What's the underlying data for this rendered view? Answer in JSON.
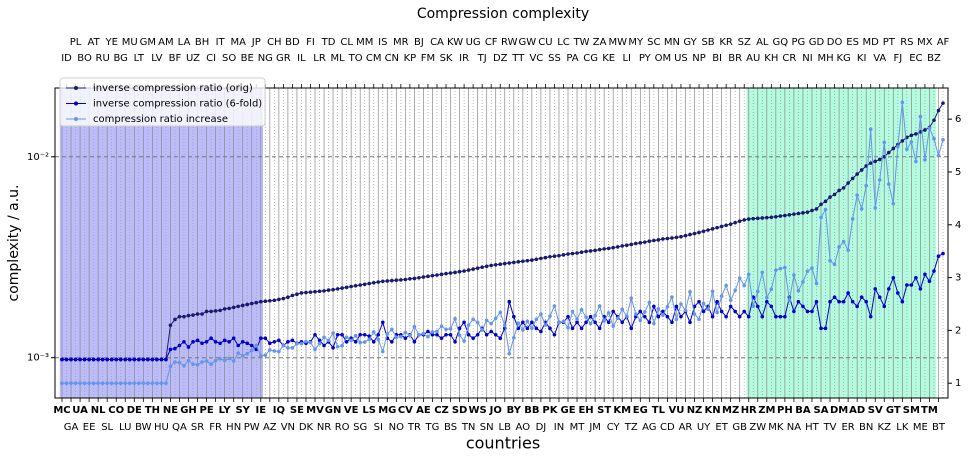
{
  "chart_data": {
    "type": "line",
    "title": "Compression complexity",
    "x_label": "countries",
    "y_label": "complexity / a.u.",
    "categories": [
      "MC",
      "ID",
      "GA",
      "PL",
      "UA",
      "BO",
      "EE",
      "AT",
      "NL",
      "RU",
      "SL",
      "YE",
      "CO",
      "BG",
      "LU",
      "MU",
      "DE",
      "LT",
      "BW",
      "GM",
      "TH",
      "LV",
      "HU",
      "AM",
      "NE",
      "BF",
      "QA",
      "LA",
      "GH",
      "UZ",
      "SR",
      "BH",
      "PE",
      "CI",
      "FR",
      "IT",
      "LY",
      "SO",
      "HN",
      "MA",
      "SY",
      "BE",
      "PW",
      "JP",
      "IE",
      "NG",
      "AZ",
      "CH",
      "IQ",
      "GR",
      "VN",
      "BD",
      "SE",
      "IL",
      "DK",
      "FI",
      "MV",
      "LR",
      "NR",
      "TD",
      "GN",
      "ML",
      "RO",
      "CL",
      "VE",
      "TO",
      "SG",
      "MM",
      "LS",
      "CM",
      "SI",
      "IS",
      "MG",
      "CN",
      "NO",
      "MR",
      "CV",
      "KP",
      "TR",
      "BJ",
      "AE",
      "FM",
      "TG",
      "CA",
      "CZ",
      "SK",
      "BS",
      "KW",
      "SD",
      "IR",
      "TN",
      "UG",
      "WS",
      "TJ",
      "SN",
      "CF",
      "JO",
      "DZ",
      "LB",
      "RW",
      "BY",
      "TT",
      "AO",
      "GW",
      "BB",
      "VC",
      "DJ",
      "CU",
      "PK",
      "SS",
      "IN",
      "LC",
      "GE",
      "PA",
      "MT",
      "TW",
      "EH",
      "CG",
      "JM",
      "ZA",
      "ST",
      "KE",
      "CY",
      "MW",
      "KM",
      "LI",
      "TZ",
      "MY",
      "EG",
      "PY",
      "AG",
      "SC",
      "TL",
      "OM",
      "CD",
      "MN",
      "VU",
      "US",
      "AR",
      "GY",
      "NZ",
      "NP",
      "UY",
      "SB",
      "KN",
      "BI",
      "ET",
      "KR",
      "MZ",
      "BR",
      "GB",
      "SZ",
      "HR",
      "AU",
      "ZW",
      "AL",
      "ZM",
      "KH",
      "MK",
      "GQ",
      "PH",
      "CR",
      "NA",
      "PG",
      "BA",
      "NI",
      "HT",
      "GD",
      "SA",
      "MH",
      "TV",
      "DO",
      "DM",
      "KG",
      "ER",
      "ES",
      "AD",
      "KI",
      "BN",
      "MD",
      "SV",
      "VA",
      "KZ",
      "PT",
      "GT",
      "FJ",
      "LK",
      "RS",
      "SM",
      "EC",
      "ME",
      "MX",
      "TM",
      "BZ",
      "BT",
      "AF"
    ],
    "series": [
      {
        "name": "inverse compression ratio (orig)",
        "color": "#191970",
        "axis": "y",
        "values": [
          0.00098,
          0.00098,
          0.00098,
          0.00098,
          0.00098,
          0.00098,
          0.00098,
          0.00098,
          0.00098,
          0.00098,
          0.00098,
          0.00098,
          0.00098,
          0.00098,
          0.00098,
          0.00098,
          0.00098,
          0.00098,
          0.00098,
          0.00098,
          0.00098,
          0.00098,
          0.00098,
          0.00098,
          0.00145,
          0.00155,
          0.0016,
          0.0016,
          0.00162,
          0.00163,
          0.00165,
          0.00165,
          0.0017,
          0.0017,
          0.00171,
          0.00172,
          0.00175,
          0.00176,
          0.00178,
          0.0018,
          0.00182,
          0.00184,
          0.00186,
          0.00188,
          0.0019,
          0.00191,
          0.00192,
          0.00193,
          0.00195,
          0.00197,
          0.002,
          0.00204,
          0.00207,
          0.0021,
          0.00211,
          0.00212,
          0.00213,
          0.00214,
          0.00215,
          0.00217,
          0.00218,
          0.0022,
          0.00222,
          0.00224,
          0.00226,
          0.00228,
          0.0023,
          0.00232,
          0.00234,
          0.00236,
          0.00238,
          0.0024,
          0.00241,
          0.00242,
          0.00243,
          0.00244,
          0.00245,
          0.00247,
          0.00248,
          0.0025,
          0.00252,
          0.00254,
          0.00256,
          0.00258,
          0.0026,
          0.00262,
          0.00264,
          0.00266,
          0.00268,
          0.0027,
          0.00273,
          0.00276,
          0.00279,
          0.00282,
          0.00285,
          0.00288,
          0.0029,
          0.00292,
          0.00294,
          0.00296,
          0.00298,
          0.003,
          0.00302,
          0.00304,
          0.00306,
          0.00309,
          0.00312,
          0.00315,
          0.00318,
          0.0032,
          0.00322,
          0.00325,
          0.00328,
          0.0033,
          0.00332,
          0.00335,
          0.00338,
          0.0034,
          0.00342,
          0.00345,
          0.00348,
          0.0035,
          0.00353,
          0.00356,
          0.0036,
          0.00363,
          0.00366,
          0.0037,
          0.00373,
          0.00376,
          0.0038,
          0.00383,
          0.00386,
          0.0039,
          0.00392,
          0.00394,
          0.00397,
          0.004,
          0.00405,
          0.0041,
          0.00415,
          0.0042,
          0.00426,
          0.00432,
          0.00438,
          0.00444,
          0.0045,
          0.00456,
          0.00462,
          0.0047,
          0.00478,
          0.00485,
          0.0049,
          0.00492,
          0.00494,
          0.00496,
          0.00498,
          0.005,
          0.00503,
          0.00507,
          0.0051,
          0.00514,
          0.00518,
          0.00522,
          0.00526,
          0.0053,
          0.0054,
          0.0055,
          0.0058,
          0.006,
          0.0063,
          0.0065,
          0.0068,
          0.007,
          0.0074,
          0.0078,
          0.0082,
          0.0086,
          0.009,
          0.0093,
          0.0095,
          0.0097,
          0.01,
          0.0105,
          0.011,
          0.0115,
          0.012,
          0.0125,
          0.0128,
          0.013,
          0.0133,
          0.0136,
          0.014,
          0.0152,
          0.017,
          0.0185
        ]
      },
      {
        "name": "inverse compression ratio (6-fold)",
        "color": "#0000cd",
        "axis": "y",
        "values": [
          0.00098,
          0.00098,
          0.00098,
          0.00098,
          0.00098,
          0.00098,
          0.00098,
          0.00098,
          0.00098,
          0.00098,
          0.00098,
          0.00098,
          0.00098,
          0.00098,
          0.00098,
          0.00098,
          0.00098,
          0.00098,
          0.00098,
          0.00098,
          0.00098,
          0.00098,
          0.00098,
          0.00098,
          0.0011,
          0.00111,
          0.00115,
          0.0012,
          0.00113,
          0.0012,
          0.00122,
          0.00118,
          0.0012,
          0.00125,
          0.0012,
          0.00118,
          0.00122,
          0.0012,
          0.00125,
          0.00115,
          0.0012,
          0.00118,
          0.00115,
          0.0011,
          0.00125,
          0.00125,
          0.00118,
          0.0012,
          0.00122,
          0.00115,
          0.0012,
          0.00122,
          0.00118,
          0.0012,
          0.00118,
          0.0012,
          0.0013,
          0.00122,
          0.00115,
          0.0012,
          0.00112,
          0.0013,
          0.0013,
          0.0012,
          0.00125,
          0.0012,
          0.0013,
          0.0013,
          0.00128,
          0.0012,
          0.0013,
          0.0015,
          0.00125,
          0.0012,
          0.0013,
          0.0013,
          0.00125,
          0.0013,
          0.0012,
          0.0013,
          0.0013,
          0.00135,
          0.0013,
          0.0013,
          0.00125,
          0.0013,
          0.0013,
          0.0012,
          0.0014,
          0.0015,
          0.0013,
          0.00125,
          0.0013,
          0.0014,
          0.0013,
          0.00135,
          0.0013,
          0.00125,
          0.0014,
          0.0019,
          0.0016,
          0.0014,
          0.0015,
          0.0014,
          0.0015,
          0.0014,
          0.00135,
          0.0015,
          0.0014,
          0.0013,
          0.0015,
          0.0015,
          0.0016,
          0.0014,
          0.0015,
          0.0014,
          0.0015,
          0.0016,
          0.0015,
          0.0014,
          0.0016,
          0.0015,
          0.0017,
          0.0016,
          0.0015,
          0.0016,
          0.0014,
          0.0016,
          0.0017,
          0.0016,
          0.0015,
          0.0018,
          0.0016,
          0.0017,
          0.0016,
          0.0015,
          0.0018,
          0.0016,
          0.0017,
          0.0015,
          0.0018,
          0.0019,
          0.0017,
          0.0018,
          0.0016,
          0.0019,
          0.0017,
          0.0016,
          0.0018,
          0.0017,
          0.0016,
          0.0017,
          0.0016,
          0.002,
          0.0018,
          0.0016,
          0.0019,
          0.0018,
          0.0016,
          0.0016,
          0.0016,
          0.002,
          0.0017,
          0.0019,
          0.0018,
          0.0017,
          0.0017,
          0.0019,
          0.0014,
          0.0014,
          0.0019,
          0.002,
          0.0019,
          0.0019,
          0.0021,
          0.0019,
          0.0018,
          0.002,
          0.0019,
          0.0016,
          0.0022,
          0.002,
          0.0018,
          0.0022,
          0.0025,
          0.0021,
          0.0019,
          0.0023,
          0.0023,
          0.0025,
          0.0022,
          0.0026,
          0.0024,
          0.0027,
          0.0032,
          0.0033
        ]
      },
      {
        "name": "compression ratio increase",
        "color": "#6495ed",
        "axis": "y2",
        "values": [
          1,
          1,
          1,
          1,
          1,
          1,
          1,
          1,
          1,
          1,
          1,
          1,
          1,
          1,
          1,
          1,
          1,
          1,
          1,
          1,
          1,
          1,
          1,
          1,
          1.32,
          1.4,
          1.39,
          1.33,
          1.43,
          1.36,
          1.35,
          1.4,
          1.42,
          1.36,
          1.43,
          1.46,
          1.43,
          1.47,
          1.42,
          1.57,
          1.52,
          1.56,
          1.62,
          1.71,
          1.52,
          1.53,
          1.63,
          1.61,
          1.6,
          1.71,
          1.67,
          1.67,
          1.75,
          1.75,
          1.79,
          1.77,
          1.64,
          1.75,
          1.87,
          1.81,
          1.95,
          1.69,
          1.71,
          1.87,
          1.81,
          1.9,
          1.77,
          1.78,
          1.83,
          1.97,
          1.83,
          1.6,
          1.93,
          2.02,
          1.87,
          1.88,
          1.96,
          1.9,
          2.07,
          1.92,
          1.94,
          1.88,
          1.97,
          1.98,
          2.08,
          2.02,
          2.03,
          2.22,
          1.91,
          1.8,
          2.1,
          2.21,
          2.15,
          2.01,
          2.19,
          2.13,
          2.23,
          2.34,
          2.1,
          1.56,
          1.86,
          2.14,
          2.01,
          2.17,
          2.04,
          2.21,
          2.31,
          2.1,
          2.27,
          2.46,
          2.15,
          2.17,
          2.05,
          2.36,
          2.21,
          2.39,
          2.25,
          2.13,
          2.28,
          2.46,
          2.18,
          2.33,
          2.08,
          2.23,
          2.4,
          2.27,
          2.61,
          2.31,
          2.19,
          2.35,
          2.53,
          2.13,
          2.41,
          2.29,
          2.45,
          2.63,
          2.21,
          2.5,
          2.38,
          2.73,
          2.31,
          2.21,
          2.51,
          2.4,
          2.74,
          2.34,
          2.65,
          2.85,
          2.57,
          2.76,
          2.99,
          2.85,
          3.06,
          2.46,
          2.74,
          3.1,
          2.62,
          2.78,
          3.14,
          3.17,
          3.19,
          2.57,
          3.05,
          2.75,
          2.92,
          3.12,
          3.18,
          2.89,
          4.14,
          4.29,
          3.32,
          3.25,
          3.58,
          3.68,
          3.52,
          4.11,
          4.56,
          4.3,
          4.74,
          5.81,
          4.32,
          4.85,
          5.56,
          4.77,
          4.4,
          5.48,
          6.32,
          5.43,
          5.57,
          5.2,
          6.05,
          5.23,
          5.83,
          5.63,
          5.31,
          5.61
        ]
      }
    ],
    "y_scale": "log",
    "ylim": [
      0.00063,
      0.022
    ],
    "yticks": [
      {
        "value": 0.001,
        "label": "10⁻³"
      },
      {
        "value": 0.01,
        "label": "10⁻²"
      }
    ],
    "y2lim": [
      0.72,
      6.59
    ],
    "y2ticks": [
      1,
      2,
      3,
      4,
      5,
      6
    ],
    "grid": true,
    "legend": "upper left",
    "shaded_spans": [
      {
        "from": "MC",
        "to": "IE",
        "color": "#bcbcfa"
      },
      {
        "from": "HR",
        "to": "BZ",
        "color": "#b4fce0"
      }
    ]
  }
}
